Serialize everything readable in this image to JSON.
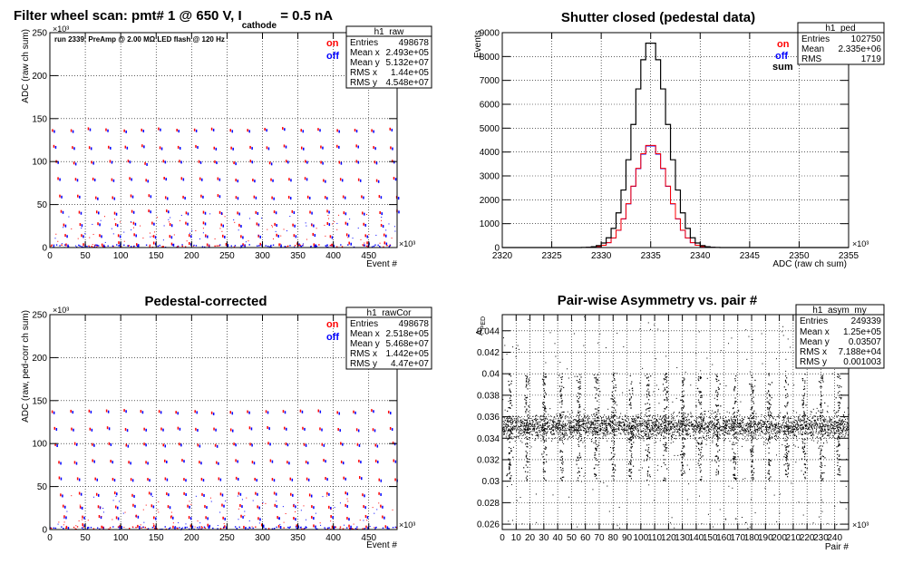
{
  "colors": {
    "on": "#ff0000",
    "off": "#0000ff",
    "sum": "#000000",
    "frame": "#000000",
    "grid": "#000000"
  },
  "chart_data": [
    {
      "id": "raw",
      "type": "scatter",
      "title": "Filter wheel scan: pmt#   1 @   650 V, I",
      "title_subscript": "cathode",
      "title_suffix": " = 0.5 nA",
      "xlabel": "Event #",
      "ylabel": "ADC (raw ch sum)",
      "x_exponent": "×10³",
      "y_exponent": "×10³",
      "xlim": [
        0,
        490
      ],
      "ylim": [
        0,
        250
      ],
      "xticks": [
        0,
        50,
        100,
        150,
        200,
        250,
        300,
        350,
        400,
        450
      ],
      "yticks": [
        0,
        50,
        100,
        150,
        200,
        250
      ],
      "grid": true,
      "annotation": "run 2339, PreAmp @ 2.00 MΩ  LED flash @  120 Hz",
      "legend": [
        {
          "label": "on",
          "color": "#ff0000"
        },
        {
          "label": "off",
          "color": "#0000ff"
        }
      ],
      "stats": {
        "name": "h1_raw",
        "rows": [
          [
            "Entries",
            "498678"
          ],
          [
            "Mean x",
            "2.493e+05"
          ],
          [
            "Mean y",
            "5.132e+07"
          ],
          [
            "RMS x",
            "1.44e+05"
          ],
          [
            "RMS y",
            "4.548e+07"
          ]
        ]
      },
      "series": [
        {
          "name": "on",
          "pattern": "filter-wheel steps",
          "levels": [
            138,
            118,
            100,
            80,
            60,
            42,
            28,
            15,
            5
          ],
          "cycle_period": 25
        }
      ]
    },
    {
      "id": "ped",
      "type": "line",
      "title": "Shutter closed (pedestal data)",
      "xlabel": "ADC (raw ch sum)",
      "ylabel": "Events",
      "x_exponent": "×10³",
      "xlim": [
        2320,
        2355
      ],
      "ylim": [
        0,
        9000
      ],
      "xticks": [
        2320,
        2325,
        2330,
        2335,
        2340,
        2345,
        2350,
        2355
      ],
      "yticks": [
        0,
        1000,
        2000,
        3000,
        4000,
        5000,
        6000,
        7000,
        8000,
        9000
      ],
      "grid": true,
      "legend": [
        {
          "label": "on",
          "color": "#ff0000"
        },
        {
          "label": "off",
          "color": "#0000ff"
        },
        {
          "label": "sum",
          "color": "#000000"
        }
      ],
      "stats": {
        "name": "h1_ped",
        "rows": [
          [
            "Entries",
            "102750"
          ],
          [
            "Mean",
            "2.335e+06"
          ],
          [
            "RMS",
            "1719"
          ]
        ]
      },
      "series": [
        {
          "name": "sum",
          "mean": 2335.0,
          "sigma": 1.72,
          "peak": 8650
        },
        {
          "name": "on",
          "mean": 2335.0,
          "sigma": 1.72,
          "peak": 4320
        },
        {
          "name": "off",
          "mean": 2335.0,
          "sigma": 1.72,
          "peak": 4300
        }
      ]
    },
    {
      "id": "rawcor",
      "type": "scatter",
      "title": "Pedestal-corrected",
      "xlabel": "Event #",
      "ylabel": "ADC (raw, ped-corr ch sum)",
      "x_exponent": "×10³",
      "y_exponent": "×10³",
      "xlim": [
        0,
        490
      ],
      "ylim": [
        0,
        250
      ],
      "xticks": [
        0,
        50,
        100,
        150,
        200,
        250,
        300,
        350,
        400,
        450
      ],
      "yticks": [
        0,
        50,
        100,
        150,
        200,
        250
      ],
      "grid": true,
      "legend": [
        {
          "label": "on",
          "color": "#ff0000"
        },
        {
          "label": "off",
          "color": "#0000ff"
        }
      ],
      "stats": {
        "name": "h1_rawCor",
        "rows": [
          [
            "Entries",
            "498678"
          ],
          [
            "Mean x",
            "2.518e+05"
          ],
          [
            "Mean y",
            "5.468e+07"
          ],
          [
            "RMS x",
            "1.442e+05"
          ],
          [
            "RMS y",
            "4.47e+07"
          ]
        ]
      },
      "series": [
        {
          "name": "on",
          "pattern": "filter-wheel steps",
          "levels": [
            138,
            118,
            100,
            80,
            60,
            42,
            28,
            15,
            5
          ],
          "cycle_period": 25
        }
      ]
    },
    {
      "id": "asym",
      "type": "scatter",
      "title": "Pair-wise Asymmetry vs. pair #",
      "xlabel": "Pair #",
      "ylabel": "A",
      "ylabel_sub": "PED",
      "x_exponent": "×10³",
      "xlim": [
        0,
        250
      ],
      "ylim": [
        0.0255,
        0.0455
      ],
      "xticks": [
        0,
        10,
        20,
        30,
        40,
        50,
        60,
        70,
        80,
        90,
        100,
        110,
        120,
        130,
        140,
        150,
        160,
        170,
        180,
        190,
        200,
        210,
        220,
        230,
        240
      ],
      "yticks": [
        0.026,
        0.028,
        0.03,
        0.032,
        0.034,
        0.036,
        0.038,
        0.04,
        0.042,
        0.044
      ],
      "ytick_labels": [
        "0.026",
        "0.028",
        "0.03",
        "0.032",
        "0.034",
        "0.036",
        "0.038",
        "0.04",
        "0.042",
        "0.044"
      ],
      "grid": true,
      "stats": {
        "name": "h1_asym_my",
        "rows": [
          [
            "Entries",
            "249339"
          ],
          [
            "Mean x",
            "1.25e+05"
          ],
          [
            "Mean y",
            "0.03507"
          ],
          [
            "RMS x",
            "7.188e+04"
          ],
          [
            "RMS y",
            "0.001003"
          ]
        ]
      },
      "series": [
        {
          "name": "pairs",
          "center": 0.0351,
          "spread": 0.001,
          "spike_period": 12.5
        }
      ]
    }
  ]
}
